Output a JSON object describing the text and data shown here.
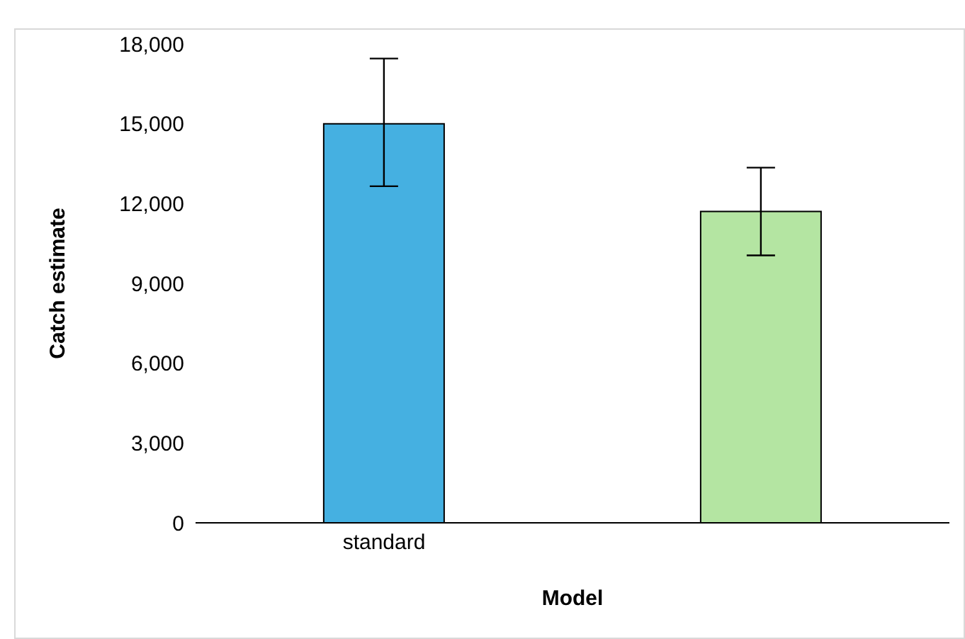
{
  "chart_data": {
    "type": "bar",
    "xlabel": "Model",
    "ylabel": "Catch estimate",
    "categories": [
      "standard",
      null
    ],
    "values": [
      15000,
      11700
    ],
    "colors": [
      "#45b0e1",
      "#b4e5a2"
    ],
    "errors": [
      [
        12650,
        17450
      ],
      [
        10050,
        13350
      ]
    ],
    "ylim": [
      0,
      18000
    ],
    "yticks": [
      0,
      {
        "value": 3000,
        "label": "3,000"
      },
      {
        "value": 6000,
        "label": "6,000"
      },
      {
        "value": 9000,
        "label": "9,000"
      },
      {
        "value": 12000,
        "label": "12,000"
      },
      {
        "value": 15000,
        "label": "15,000"
      },
      {
        "value": 18000,
        "label": "18,000"
      }
    ],
    "grid": false,
    "legend": false
  }
}
